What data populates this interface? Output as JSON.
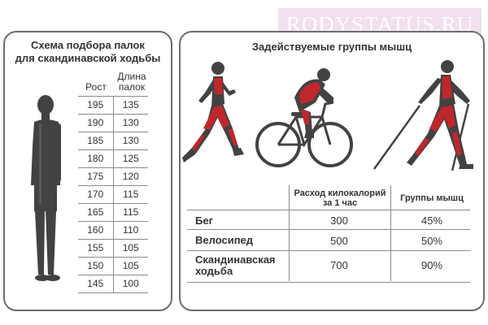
{
  "watermark": "RODYSTATUS.RU",
  "left": {
    "title_line1": "Схема подбора палок",
    "title_line2": "для скандинавской ходьбы",
    "col_height": "Рост",
    "col_length_line1": "Длина",
    "col_length_line2": "палок",
    "rows": [
      {
        "height": "195",
        "length": "135"
      },
      {
        "height": "190",
        "length": "130"
      },
      {
        "height": "185",
        "length": "130"
      },
      {
        "height": "180",
        "length": "125"
      },
      {
        "height": "175",
        "length": "120"
      },
      {
        "height": "170",
        "length": "115"
      },
      {
        "height": "165",
        "length": "115"
      },
      {
        "height": "160",
        "length": "110"
      },
      {
        "height": "155",
        "length": "105"
      },
      {
        "height": "150",
        "length": "105"
      },
      {
        "height": "145",
        "length": "100"
      }
    ]
  },
  "right": {
    "title": "Задействуемые группы мышц",
    "col_calories_line1": "Расход килокалорий",
    "col_calories_line2": "за 1 час",
    "col_muscles": "Группы мышц",
    "rows": [
      {
        "activity": "Бег",
        "calories": "300",
        "muscles": "45%"
      },
      {
        "activity": "Велосипед",
        "calories": "500",
        "muscles": "50%"
      },
      {
        "activity_line1": "Скандинавская",
        "activity_line2": "ходьба",
        "calories": "700",
        "muscles": "90%"
      }
    ]
  },
  "colors": {
    "figure": "#424242",
    "muscle_highlight": "#c0272d",
    "border": "#6d6d6d",
    "watermark_bg": "#eed6e8"
  },
  "icons": [
    "standing-person-icon",
    "runner-icon",
    "cyclist-icon",
    "nordic-walker-icon"
  ]
}
